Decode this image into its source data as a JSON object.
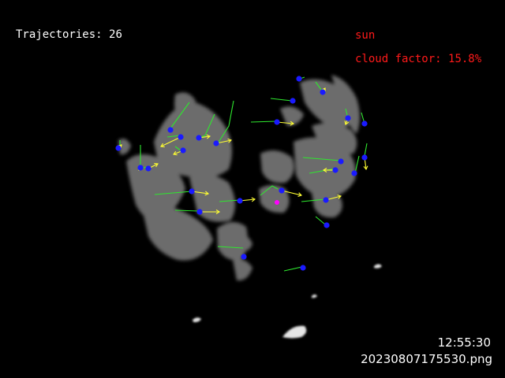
{
  "overlay": {
    "trajectories_label": "Trajectories:",
    "trajectories_count": "26",
    "sun_label": "sun",
    "cloud_factor_label": "cloud factor:",
    "cloud_factor_value": "15.8%"
  },
  "footer": {
    "time": "12:55:30",
    "filename": "20230807175530.png"
  },
  "colors": {
    "background": "#000000",
    "cloud": "#7f7f7f",
    "cloud_bright": "#e6e6e6",
    "trail": "#2ee82e",
    "arrow": "#ffff33",
    "point": "#1a1aff",
    "sun_marker": "#ff00ff",
    "hud_text": "#ffffff",
    "alert_text": "#ff1a1a"
  },
  "icons": {
    "point": "blue-dot-icon",
    "sun": "magenta-dot-icon",
    "arrow": "yellow-arrow-icon"
  }
}
